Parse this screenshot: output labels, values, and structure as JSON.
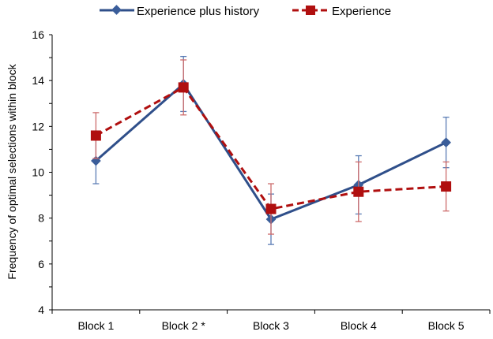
{
  "chart_data": {
    "type": "line",
    "title": "",
    "xlabel": "",
    "ylabel": "Frequency of optimal selections within block",
    "ylim": [
      4,
      16
    ],
    "yticks": [
      4,
      6,
      8,
      10,
      12,
      14,
      16
    ],
    "categories": [
      "Block 1",
      "Block 2 *",
      "Block 3",
      "Block 4",
      "Block 5"
    ],
    "legend_position": "top",
    "grid": false,
    "series": [
      {
        "name": "Experience plus history",
        "color": "#2f4f8a",
        "errcolor": "#5b7db5",
        "marker": "diamond",
        "dash": "solid",
        "values": [
          10.5,
          13.85,
          7.95,
          9.45,
          11.3
        ],
        "errors": [
          1.0,
          1.2,
          1.1,
          1.27,
          1.1
        ]
      },
      {
        "name": "Experience",
        "color": "#b00f0f",
        "errcolor": "#cd6b6b",
        "marker": "square",
        "dash": "dashed",
        "values": [
          11.6,
          13.7,
          8.4,
          9.15,
          9.38
        ],
        "errors": [
          1.0,
          1.2,
          1.1,
          1.3,
          1.07
        ]
      }
    ]
  }
}
